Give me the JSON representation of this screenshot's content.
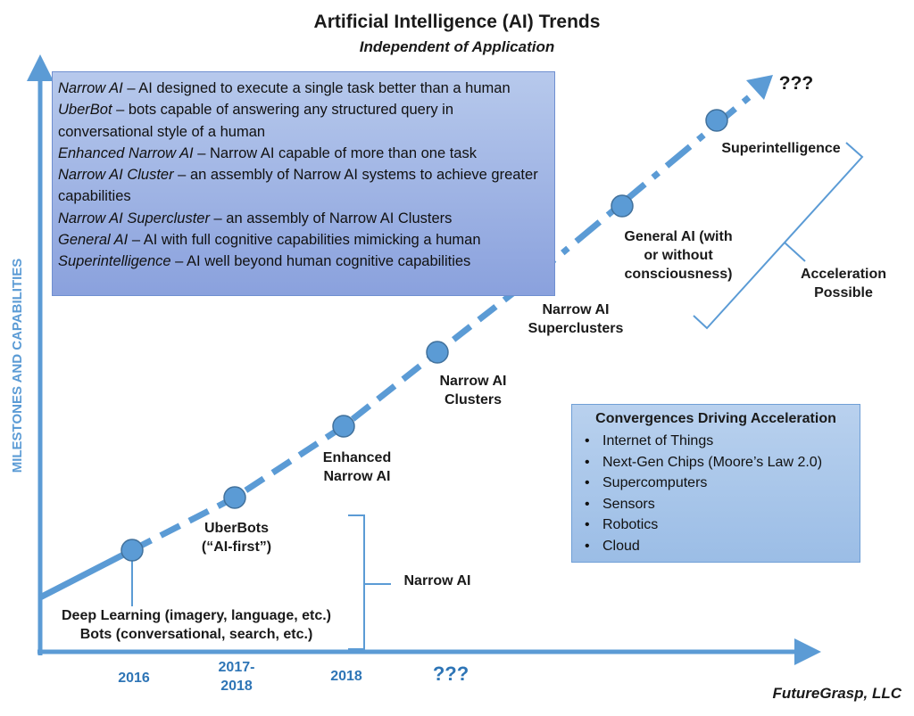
{
  "title": "Artificial Intelligence (AI) Trends",
  "subtitle": "Independent of Application",
  "y_axis_label": "MILESTONES AND CAPABILITIES",
  "definitions": [
    {
      "term": "Narrow AI",
      "text": " – AI designed to execute a single task better than a human"
    },
    {
      "term": "UberBot",
      "text": " – bots capable of answering any structured query in conversational style of a human"
    },
    {
      "term": "Enhanced Narrow AI",
      "text": " – Narrow AI capable of more than one task"
    },
    {
      "term": "Narrow AI Cluster",
      "text": " – an assembly of Narrow AI systems to achieve greater capabilities"
    },
    {
      "term": "Narrow AI Supercluster",
      "text": " – an assembly of Narrow AI Clusters"
    },
    {
      "term": "General AI",
      "text": " – AI with full cognitive capabilities mimicking a human"
    },
    {
      "term": "Superintelligence",
      "text": " – AI well beyond human cognitive capabilities"
    }
  ],
  "milestones": [
    {
      "lines": [
        "Deep Learning (imagery, language, etc.)",
        "Bots (conversational, search, etc.)"
      ]
    },
    {
      "lines": [
        "UberBots",
        "(“AI-first”)"
      ]
    },
    {
      "lines": [
        "Enhanced",
        "Narrow AI"
      ]
    },
    {
      "lines": [
        "Narrow AI",
        "Clusters"
      ]
    },
    {
      "lines": [
        "Narrow AI",
        "Superclusters"
      ]
    },
    {
      "lines": [
        "General AI (with",
        "or without",
        "consciousness)"
      ]
    },
    {
      "lines": [
        "Superintelligence"
      ]
    }
  ],
  "future_label": "???",
  "brackets": [
    {
      "lines": [
        "Narrow AI"
      ]
    },
    {
      "lines": [
        "Acceleration",
        "Possible"
      ]
    }
  ],
  "timeline": [
    {
      "lines": [
        "2016"
      ]
    },
    {
      "lines": [
        "2017-",
        "2018"
      ]
    },
    {
      "lines": [
        "2018"
      ]
    },
    {
      "lines": [
        "???"
      ]
    }
  ],
  "convergences": {
    "title": "Convergences Driving Acceleration",
    "items": [
      "Internet of Things",
      "Next-Gen Chips (Moore’s Law 2.0)",
      "Supercomputers",
      "Sensors",
      "Robotics",
      "Cloud"
    ]
  },
  "footer": "FutureGrasp, LLC"
}
